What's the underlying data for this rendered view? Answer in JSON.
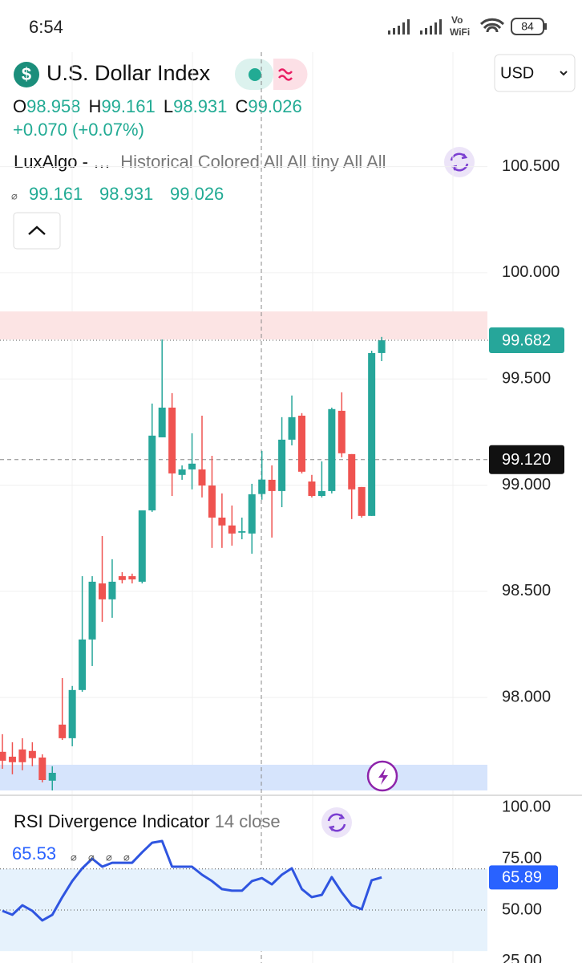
{
  "status_bar": {
    "time": "6:54",
    "battery": "84",
    "wifi_call": [
      "Vo",
      "WiFi"
    ]
  },
  "header": {
    "icon": "$",
    "title": "U.S. Dollar Index",
    "currency": "USD",
    "ohlc": [
      {
        "label": "O",
        "value": "98.958"
      },
      {
        "label": "H",
        "value": "99.161"
      },
      {
        "label": "L",
        "value": "98.931"
      },
      {
        "label": "C",
        "value": "99.026"
      }
    ],
    "change": "+0.070 (+0.07%)"
  },
  "indicator": {
    "name": "LuxAlgo - …",
    "settings": "Historical Colored All All tiny All All",
    "marker": "⌀",
    "values": [
      "99.161",
      "98.931",
      "99.026"
    ]
  },
  "chart_data": [
    {
      "type": "candlestick",
      "up_color": "#26a69a",
      "down_color": "#ef5350",
      "open": [
        97.744,
        97.721,
        97.755,
        97.748,
        97.717,
        97.608,
        97.872,
        97.808,
        98.035,
        98.273,
        98.537,
        98.462,
        98.571,
        98.571,
        98.545,
        98.881,
        99.225,
        99.365,
        99.048,
        99.074,
        99.074,
        98.998,
        98.847,
        98.81,
        98.776,
        98.772,
        98.958,
        99.025,
        98.972,
        99.214,
        99.327,
        99.017,
        98.949,
        98.972,
        99.35,
        99.146,
        98.991,
        98.855,
        99.622
      ],
      "high": [
        97.827,
        97.789,
        97.808,
        97.789,
        97.732,
        97.676,
        98.091,
        98.054,
        98.571,
        98.571,
        98.76,
        98.651,
        98.59,
        98.583,
        98.881,
        99.384,
        99.686,
        99.433,
        99.093,
        99.244,
        99.327,
        99.138,
        98.961,
        98.904,
        98.847,
        99.006,
        99.161,
        99.093,
        99.32,
        99.422,
        99.339,
        99.048,
        99.112,
        99.365,
        99.437,
        99.146,
        98.991,
        99.633,
        99.698
      ],
      "low": [
        97.664,
        97.638,
        97.657,
        97.676,
        97.6,
        97.562,
        97.8,
        97.77,
        98.027,
        98.148,
        98.356,
        98.375,
        98.537,
        98.537,
        98.537,
        98.874,
        99.225,
        98.949,
        99.025,
        98.98,
        98.942,
        98.704,
        98.704,
        98.715,
        98.745,
        98.677,
        98.931,
        98.753,
        98.896,
        99.187,
        99.055,
        98.942,
        98.942,
        98.961,
        99.131,
        98.84,
        98.847,
        98.855,
        99.584
      ],
      "close": [
        97.702,
        97.695,
        97.695,
        97.714,
        97.611,
        97.645,
        97.808,
        98.035,
        98.273,
        98.545,
        98.462,
        98.545,
        98.553,
        98.556,
        98.881,
        99.233,
        99.365,
        99.055,
        99.074,
        99.101,
        98.998,
        98.847,
        98.81,
        98.772,
        98.783,
        98.957,
        99.026,
        98.972,
        99.214,
        99.32,
        99.063,
        98.949,
        98.972,
        99.358,
        99.15,
        98.98,
        98.855,
        99.622,
        99.682
      ],
      "ylim": [
        97.543,
        101.039
      ],
      "yticks": [
        {
          "value": 100.5,
          "label": "100.500"
        },
        {
          "value": 100,
          "label": "100.000"
        },
        {
          "value": 99.5,
          "label": "99.500"
        },
        {
          "value": 99,
          "label": "99.000"
        },
        {
          "value": 98.5,
          "label": "98.500"
        },
        {
          "value": 98,
          "label": "98.000"
        }
      ],
      "grid": true,
      "zones": [
        {
          "from": 99.686,
          "to": 99.818,
          "color": "#fce4e4"
        },
        {
          "from": 97.562,
          "to": 97.683,
          "color": "#d6e4fc"
        }
      ],
      "last_price": 99.682,
      "crosshair": {
        "value": 99.12,
        "label": "99.120"
      }
    },
    {
      "type": "line",
      "title": "RSI Divergence Indicator",
      "subtitle": "14 close",
      "color": "#2f55e0",
      "values": [
        49.6,
        47.7,
        52.3,
        49.6,
        44.9,
        47.7,
        56.3,
        64.1,
        70.3,
        75.0,
        71.1,
        73.0,
        73.0,
        73.0,
        78.1,
        82.8,
        83.6,
        71.1,
        71.1,
        71.1,
        67.2,
        64.1,
        60.2,
        59.4,
        59.4,
        64.1,
        65.53,
        62.5,
        67.2,
        70.3,
        60.2,
        56.3,
        57.4,
        66.0,
        58.6,
        52.3,
        50.4,
        64.5,
        65.89
      ],
      "ylim": [
        24.2,
        105.1
      ],
      "yticks": [
        {
          "value": 100,
          "label": "100.00"
        },
        {
          "value": 75,
          "label": "75.00"
        },
        {
          "value": 50,
          "label": "50.00"
        },
        {
          "value": 25,
          "label": "25.00"
        }
      ],
      "band": [
        30,
        70
      ],
      "band_color": "#e6f2fc",
      "midline": 50,
      "crosshair_value": 65.53,
      "last_value": 65.89,
      "markers": [
        "⌀",
        "⌀",
        "⌀",
        "⌀"
      ]
    }
  ]
}
